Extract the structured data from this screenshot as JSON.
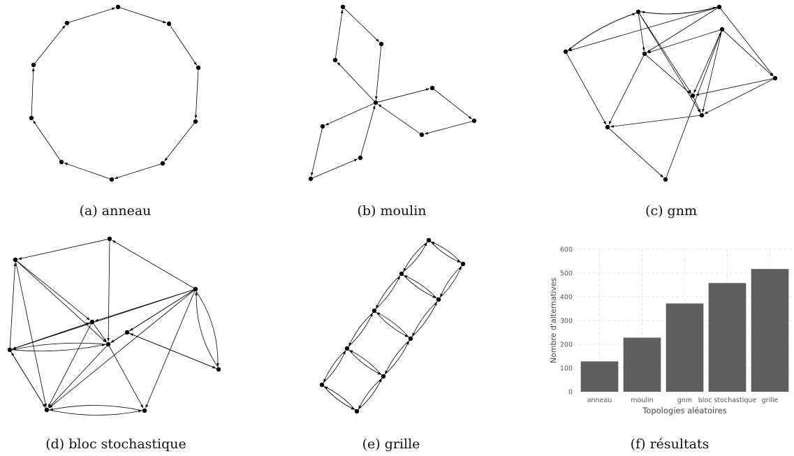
{
  "captions": {
    "a": "(a) anneau",
    "b": "(b) moulin",
    "c": "(c) gnm",
    "d": "(d) bloc stochastique",
    "e": "(e) grille",
    "f": "(f) résultats"
  },
  "colors": {
    "edge": "#000000",
    "node": "#000000",
    "bar": "#5f5f5f",
    "grid": "#e6e6e6"
  },
  "chart_data": {
    "type": "bar",
    "categories": [
      "anneau",
      "moulin",
      "gnm",
      "bloc stochastique",
      "grille"
    ],
    "values": [
      128,
      228,
      372,
      458,
      517
    ],
    "xlabel": "Topologies aléatoires",
    "ylabel": "Nombre d'alternatives",
    "yticks": [
      "0",
      "100",
      "200",
      "300",
      "400",
      "500",
      "600"
    ],
    "ylim": [
      0,
      600
    ],
    "grid": true
  }
}
